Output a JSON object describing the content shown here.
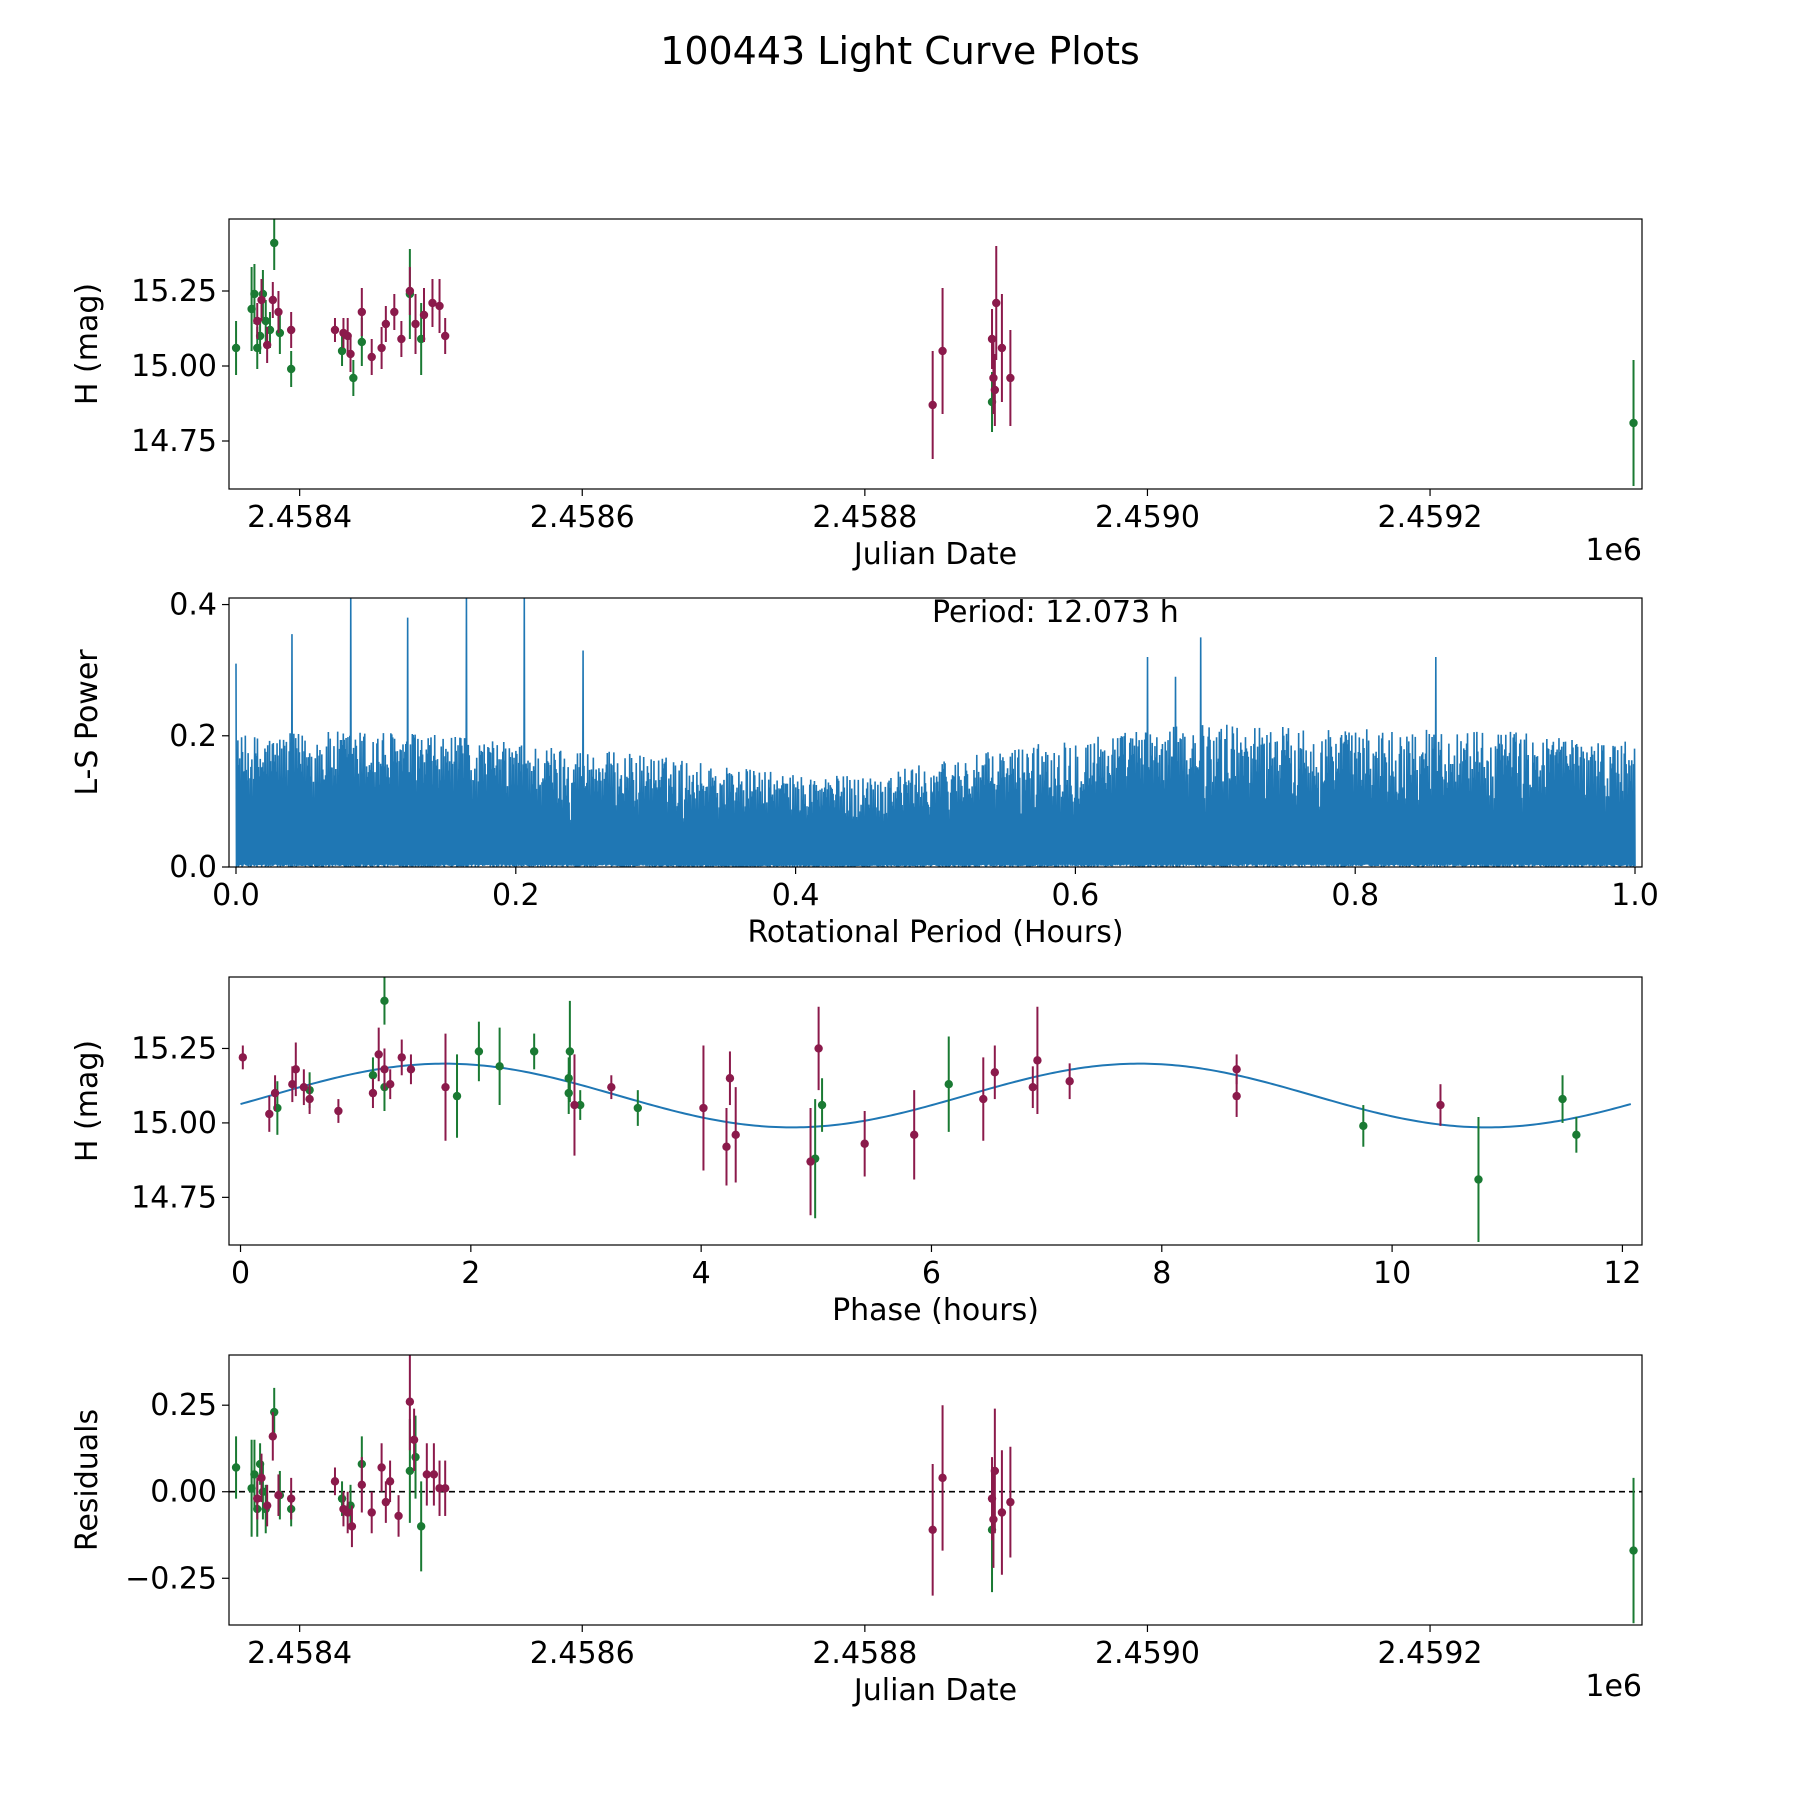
{
  "figure": {
    "title": "100443 Light Curve Plots"
  },
  "chart_data": [
    {
      "type": "scatter",
      "panel": "light-curve",
      "title": "",
      "xlabel": "Julian Date",
      "ylabel": "H (mag)",
      "x_offset_label": "1e6",
      "xlim": [
        2.45835,
        2.45935
      ],
      "ylim": [
        14.59,
        15.49
      ],
      "xticks": [
        2.4584,
        2.4586,
        2.4588,
        2.459,
        2.4592
      ],
      "xtick_labels": [
        "2.4584",
        "2.4586",
        "2.4588",
        "2.4590",
        "2.4592"
      ],
      "yticks": [
        14.75,
        15.0,
        15.25
      ],
      "ytick_labels": [
        "14.75",
        "15.00",
        "15.25"
      ],
      "colors": {
        "green": "#1a7a33",
        "maroon": "#8b1a4b"
      },
      "series": [
        {
          "name": "green",
          "color": "#1a7a33",
          "points": [
            [
              2.458355,
              15.06,
              0.09
            ],
            [
              2.458366,
              15.19,
              0.14
            ],
            [
              2.458368,
              15.24,
              0.1
            ],
            [
              2.45837,
              15.06,
              0.07
            ],
            [
              2.458372,
              15.1,
              0.06
            ],
            [
              2.458374,
              15.24,
              0.08
            ],
            [
              2.458376,
              15.15,
              0.07
            ],
            [
              2.458379,
              15.12,
              0.06
            ],
            [
              2.458382,
              15.41,
              0.09
            ],
            [
              2.458386,
              15.11,
              0.07
            ],
            [
              2.458394,
              14.99,
              0.06
            ],
            [
              2.45843,
              15.05,
              0.05
            ],
            [
              2.458438,
              14.96,
              0.06
            ],
            [
              2.458444,
              15.08,
              0.08
            ],
            [
              2.458478,
              15.24,
              0.15
            ],
            [
              2.458486,
              15.09,
              0.12
            ],
            [
              2.45889,
              14.88,
              0.1
            ],
            [
              2.459344,
              14.81,
              0.21
            ]
          ]
        },
        {
          "name": "maroon",
          "color": "#8b1a4b",
          "points": [
            [
              2.45837,
              15.15,
              0.06
            ],
            [
              2.458373,
              15.22,
              0.07
            ],
            [
              2.458377,
              15.07,
              0.06
            ],
            [
              2.458381,
              15.22,
              0.06
            ],
            [
              2.458385,
              15.18,
              0.07
            ],
            [
              2.458394,
              15.12,
              0.06
            ],
            [
              2.458425,
              15.12,
              0.04
            ],
            [
              2.458431,
              15.11,
              0.05
            ],
            [
              2.458434,
              15.1,
              0.06
            ],
            [
              2.458436,
              15.04,
              0.06
            ],
            [
              2.458444,
              15.18,
              0.08
            ],
            [
              2.458451,
              15.03,
              0.06
            ],
            [
              2.458458,
              15.06,
              0.07
            ],
            [
              2.458461,
              15.14,
              0.06
            ],
            [
              2.458467,
              15.18,
              0.06
            ],
            [
              2.458472,
              15.09,
              0.06
            ],
            [
              2.458478,
              15.25,
              0.08
            ],
            [
              2.458482,
              15.14,
              0.1
            ],
            [
              2.458488,
              15.17,
              0.09
            ],
            [
              2.458494,
              15.21,
              0.08
            ],
            [
              2.458499,
              15.2,
              0.09
            ],
            [
              2.458503,
              15.1,
              0.06
            ],
            [
              2.458848,
              14.87,
              0.18
            ],
            [
              2.458855,
              15.05,
              0.21
            ],
            [
              2.45889,
              15.09,
              0.1
            ],
            [
              2.458891,
              14.96,
              0.12
            ],
            [
              2.458892,
              14.92,
              0.12
            ],
            [
              2.458893,
              15.21,
              0.19
            ],
            [
              2.458897,
              15.06,
              0.18
            ],
            [
              2.458903,
              14.96,
              0.16
            ]
          ]
        }
      ]
    },
    {
      "type": "line",
      "panel": "periodogram",
      "title": "",
      "xlabel": "Rotational Period (Hours)",
      "ylabel": "L-S Power",
      "annotation": "Period: 12.073 h",
      "xlim": [
        -0.005,
        1.005
      ],
      "ylim": [
        0.0,
        0.41
      ],
      "xticks": [
        0.0,
        0.2,
        0.4,
        0.6,
        0.8,
        1.0
      ],
      "xtick_labels": [
        "0.0",
        "0.2",
        "0.4",
        "0.6",
        "0.8",
        "1.0"
      ],
      "yticks": [
        0.0,
        0.2,
        0.4
      ],
      "ytick_labels": [
        "0.0",
        "0.2",
        "0.4"
      ],
      "color": "#1f77b4",
      "x_range": [
        0.0,
        1.0
      ],
      "n_samples": 3000,
      "peaks": [
        {
          "x": 0.0,
          "y": 0.31
        },
        {
          "x": 0.04,
          "y": 0.355
        },
        {
          "x": 0.082,
          "y": 0.41
        },
        {
          "x": 0.123,
          "y": 0.38
        },
        {
          "x": 0.165,
          "y": 0.41
        },
        {
          "x": 0.206,
          "y": 0.41
        },
        {
          "x": 0.248,
          "y": 0.33
        },
        {
          "x": 0.69,
          "y": 0.35
        },
        {
          "x": 0.652,
          "y": 0.32
        },
        {
          "x": 0.858,
          "y": 0.32
        },
        {
          "x": 0.672,
          "y": 0.29
        }
      ],
      "envelope": [
        {
          "x": 0.0,
          "y": 0.2
        },
        {
          "x": 0.1,
          "y": 0.21
        },
        {
          "x": 0.2,
          "y": 0.19
        },
        {
          "x": 0.3,
          "y": 0.17
        },
        {
          "x": 0.4,
          "y": 0.14
        },
        {
          "x": 0.45,
          "y": 0.14
        },
        {
          "x": 0.5,
          "y": 0.16
        },
        {
          "x": 0.6,
          "y": 0.2
        },
        {
          "x": 0.7,
          "y": 0.22
        },
        {
          "x": 0.8,
          "y": 0.21
        },
        {
          "x": 0.9,
          "y": 0.21
        },
        {
          "x": 1.0,
          "y": 0.19
        }
      ]
    },
    {
      "type": "scatter",
      "panel": "phased",
      "title": "",
      "xlabel": "Phase (hours)",
      "ylabel": "H (mag)",
      "xlim": [
        -0.1,
        12.17
      ],
      "ylim": [
        14.59,
        15.49
      ],
      "xticks": [
        0,
        2,
        4,
        6,
        8,
        10,
        12
      ],
      "xtick_labels": [
        "0",
        "2",
        "4",
        "6",
        "8",
        "10",
        "12"
      ],
      "yticks": [
        14.75,
        15.0,
        15.25
      ],
      "ytick_labels": [
        "14.75",
        "15.00",
        "15.25"
      ],
      "model": {
        "color": "#1f77b4",
        "type": "sine",
        "mean": 15.092,
        "amplitude": 0.107,
        "period": 6.0365,
        "peak_phase": 1.77,
        "x_range": [
          0.0,
          12.073
        ]
      },
      "series": [
        {
          "name": "green",
          "color": "#1a7a33",
          "points": [
            [
              0.32,
              15.05,
              0.09
            ],
            [
              0.6,
              15.11,
              0.06
            ],
            [
              1.15,
              15.16,
              0.06
            ],
            [
              1.25,
              15.12,
              0.08
            ],
            [
              1.25,
              15.41,
              0.08
            ],
            [
              1.88,
              15.09,
              0.14
            ],
            [
              2.07,
              15.24,
              0.1
            ],
            [
              2.25,
              15.19,
              0.13
            ],
            [
              2.55,
              15.24,
              0.06
            ],
            [
              2.85,
              15.15,
              0.07
            ],
            [
              2.85,
              15.1,
              0.07
            ],
            [
              2.86,
              15.24,
              0.17
            ],
            [
              2.95,
              15.06,
              0.05
            ],
            [
              3.45,
              15.05,
              0.06
            ],
            [
              4.99,
              14.88,
              0.2
            ],
            [
              5.05,
              15.06,
              0.09
            ],
            [
              6.15,
              15.13,
              0.16
            ],
            [
              9.75,
              14.99,
              0.07
            ],
            [
              10.75,
              14.81,
              0.21
            ],
            [
              11.48,
              15.08,
              0.08
            ],
            [
              11.6,
              14.96,
              0.06
            ]
          ]
        },
        {
          "name": "maroon",
          "color": "#8b1a4b",
          "points": [
            [
              0.02,
              15.22,
              0.04
            ],
            [
              0.25,
              15.03,
              0.06
            ],
            [
              0.3,
              15.1,
              0.06
            ],
            [
              0.45,
              15.13,
              0.06
            ],
            [
              0.48,
              15.18,
              0.09
            ],
            [
              0.55,
              15.12,
              0.06
            ],
            [
              0.6,
              15.08,
              0.05
            ],
            [
              0.85,
              15.04,
              0.04
            ],
            [
              1.15,
              15.1,
              0.05
            ],
            [
              1.2,
              15.23,
              0.09
            ],
            [
              1.25,
              15.18,
              0.07
            ],
            [
              1.3,
              15.13,
              0.05
            ],
            [
              1.4,
              15.22,
              0.06
            ],
            [
              1.48,
              15.18,
              0.05
            ],
            [
              1.78,
              15.12,
              0.18
            ],
            [
              2.9,
              15.06,
              0.17
            ],
            [
              3.22,
              15.12,
              0.04
            ],
            [
              4.02,
              15.05,
              0.21
            ],
            [
              4.22,
              14.92,
              0.13
            ],
            [
              4.25,
              15.15,
              0.09
            ],
            [
              4.3,
              14.96,
              0.16
            ],
            [
              4.95,
              14.87,
              0.18
            ],
            [
              5.02,
              15.25,
              0.14
            ],
            [
              5.42,
              14.93,
              0.11
            ],
            [
              5.85,
              14.96,
              0.15
            ],
            [
              6.45,
              15.08,
              0.14
            ],
            [
              6.55,
              15.17,
              0.09
            ],
            [
              6.88,
              15.12,
              0.07
            ],
            [
              6.92,
              15.21,
              0.18
            ],
            [
              7.2,
              15.14,
              0.06
            ],
            [
              8.65,
              15.18,
              0.05
            ],
            [
              8.65,
              15.09,
              0.07
            ],
            [
              10.42,
              15.06,
              0.07
            ]
          ]
        }
      ]
    },
    {
      "type": "scatter",
      "panel": "residuals",
      "title": "",
      "xlabel": "Julian Date",
      "ylabel": "Residuals",
      "x_offset_label": "1e6",
      "xlim": [
        2.45835,
        2.45935
      ],
      "ylim": [
        -0.385,
        0.395
      ],
      "xticks": [
        2.4584,
        2.4586,
        2.4588,
        2.459,
        2.4592
      ],
      "xtick_labels": [
        "2.4584",
        "2.4586",
        "2.4588",
        "2.4590",
        "2.4592"
      ],
      "yticks": [
        -0.25,
        0.0,
        0.25
      ],
      "ytick_labels": [
        "−0.25",
        "0.00",
        "0.25"
      ],
      "reference_line": 0.0,
      "series": [
        {
          "name": "green",
          "color": "#1a7a33",
          "points": [
            [
              2.458355,
              0.07,
              0.09
            ],
            [
              2.458366,
              0.01,
              0.14
            ],
            [
              2.458368,
              0.05,
              0.1
            ],
            [
              2.45837,
              -0.05,
              0.08
            ],
            [
              2.458372,
              0.08,
              0.06
            ],
            [
              2.458374,
              0.0,
              0.08
            ],
            [
              2.458376,
              -0.05,
              0.07
            ],
            [
              2.458382,
              0.23,
              0.07
            ],
            [
              2.458386,
              -0.01,
              0.07
            ],
            [
              2.458394,
              -0.05,
              0.05
            ],
            [
              2.45843,
              -0.02,
              0.05
            ],
            [
              2.458436,
              -0.04,
              0.06
            ],
            [
              2.458444,
              0.08,
              0.08
            ],
            [
              2.458478,
              0.06,
              0.15
            ],
            [
              2.458482,
              0.1,
              0.12
            ],
            [
              2.458486,
              -0.1,
              0.13
            ],
            [
              2.45889,
              -0.11,
              0.18
            ],
            [
              2.459344,
              -0.17,
              0.21
            ]
          ]
        },
        {
          "name": "maroon",
          "color": "#8b1a4b",
          "points": [
            [
              2.45837,
              -0.02,
              0.06
            ],
            [
              2.458373,
              0.04,
              0.07
            ],
            [
              2.458377,
              -0.04,
              0.06
            ],
            [
              2.458381,
              0.16,
              0.07
            ],
            [
              2.458385,
              -0.01,
              0.06
            ],
            [
              2.458394,
              -0.02,
              0.06
            ],
            [
              2.458425,
              0.03,
              0.04
            ],
            [
              2.458431,
              -0.05,
              0.05
            ],
            [
              2.458434,
              -0.06,
              0.06
            ],
            [
              2.458437,
              -0.1,
              0.06
            ],
            [
              2.458444,
              0.02,
              0.08
            ],
            [
              2.458451,
              -0.06,
              0.06
            ],
            [
              2.458458,
              0.07,
              0.07
            ],
            [
              2.458461,
              -0.03,
              0.06
            ],
            [
              2.458464,
              0.03,
              0.06
            ],
            [
              2.45847,
              -0.07,
              0.06
            ],
            [
              2.458478,
              0.26,
              0.14
            ],
            [
              2.458481,
              0.15,
              0.09
            ],
            [
              2.45849,
              0.05,
              0.09
            ],
            [
              2.458495,
              0.05,
              0.09
            ],
            [
              2.458499,
              0.01,
              0.08
            ],
            [
              2.458503,
              0.01,
              0.08
            ],
            [
              2.458848,
              -0.11,
              0.19
            ],
            [
              2.458855,
              0.04,
              0.21
            ],
            [
              2.45889,
              -0.02,
              0.12
            ],
            [
              2.458891,
              -0.08,
              0.14
            ],
            [
              2.458892,
              0.06,
              0.18
            ],
            [
              2.458897,
              -0.06,
              0.18
            ],
            [
              2.458903,
              -0.03,
              0.16
            ]
          ]
        }
      ]
    }
  ]
}
